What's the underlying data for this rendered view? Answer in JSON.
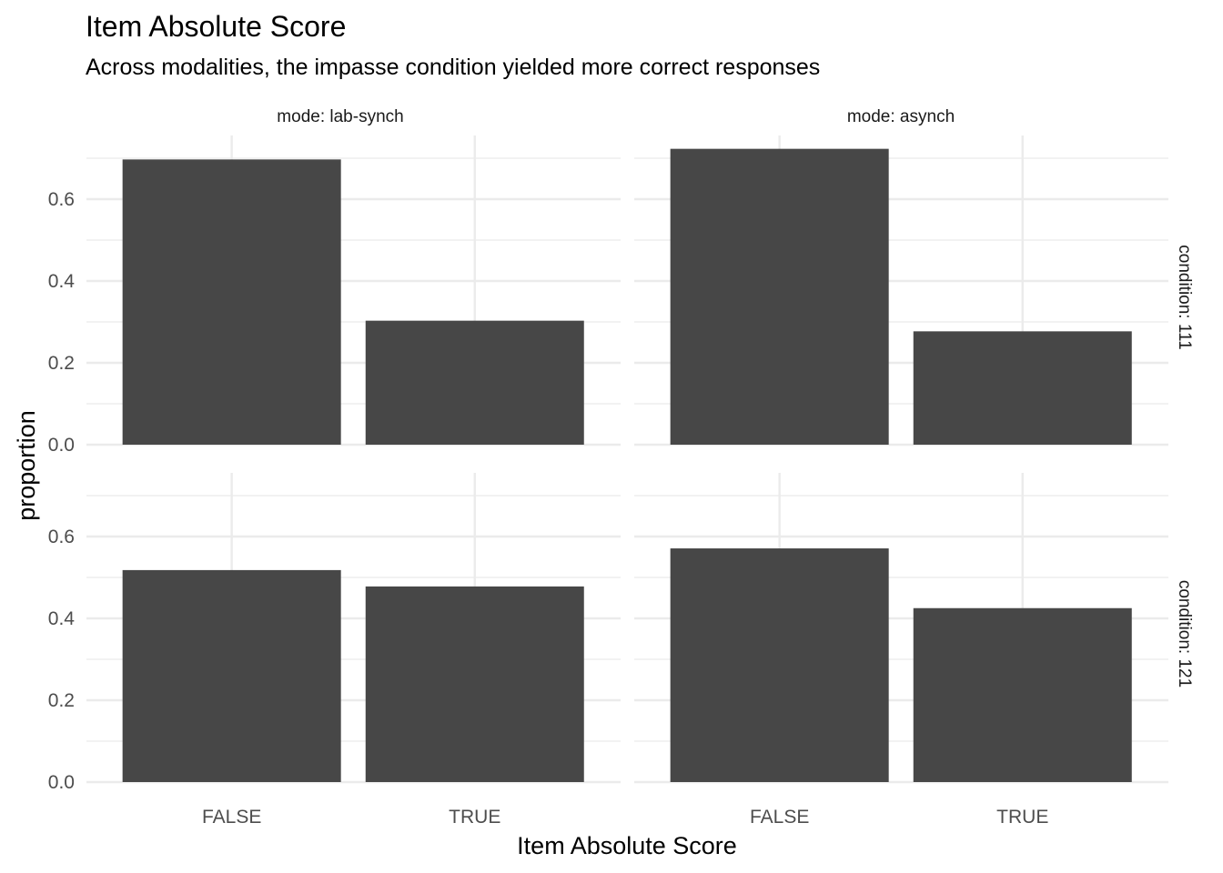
{
  "chart_data": {
    "type": "bar",
    "title": "Item Absolute Score",
    "subtitle": "Across modalities, the impasse condition yielded more correct responses",
    "xlabel": "Item Absolute Score",
    "ylabel": "proportion",
    "categories": [
      "FALSE",
      "TRUE"
    ],
    "ylim": [
      0,
      0.72
    ],
    "yticks": [
      0.0,
      0.2,
      0.4,
      0.6
    ],
    "ytick_labels": [
      "0.0",
      "0.2",
      "0.4",
      "0.6"
    ],
    "grid": true,
    "bar_color": "#474747",
    "grid_color": "#ebebeb",
    "facet_cols": [
      "mode: lab-synch",
      "mode: asynch"
    ],
    "facet_rows": [
      "condition: 111",
      "condition: 121"
    ],
    "panels": [
      {
        "col": 0,
        "row": 0,
        "values": [
          0.697,
          0.303
        ]
      },
      {
        "col": 1,
        "row": 0,
        "values": [
          0.723,
          0.277
        ]
      },
      {
        "col": 0,
        "row": 1,
        "values": [
          0.518,
          0.478
        ]
      },
      {
        "col": 1,
        "row": 1,
        "values": [
          0.571,
          0.425
        ]
      }
    ]
  }
}
